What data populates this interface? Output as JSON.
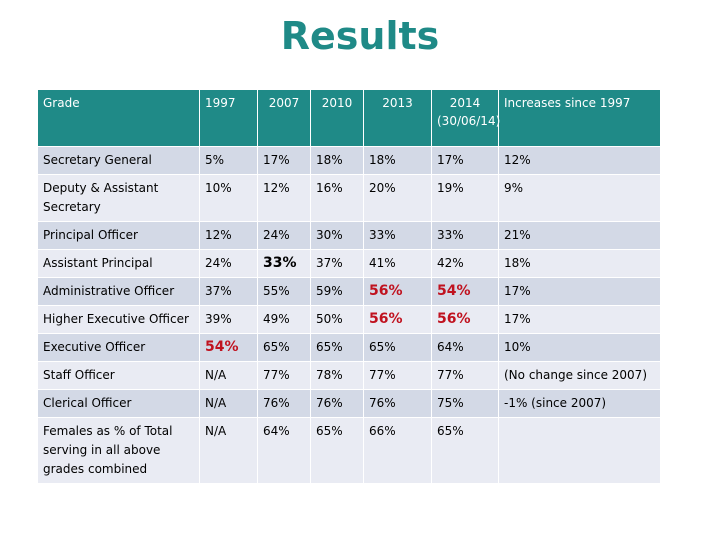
{
  "title": "Results",
  "table": {
    "headers": [
      "Grade",
      "1997",
      "2007",
      "2010",
      "2013",
      "2014 (30/06/14)",
      "Increases since 1997"
    ],
    "rows": [
      {
        "grade": "Secretary General",
        "v1997": "5%",
        "v2007": "17%",
        "v2010": "18%",
        "v2013": "18%",
        "v2014": "17%",
        "increase": "12%"
      },
      {
        "grade": "Deputy & Assistant Secretary",
        "v1997": "10%",
        "v2007": "12%",
        "v2010": "16%",
        "v2013": "20%",
        "v2014": "19%",
        "increase": "9%"
      },
      {
        "grade": "Principal Officer",
        "v1997": "12%",
        "v2007": "24%",
        "v2010": "30%",
        "v2013": "33%",
        "v2014": "33%",
        "increase": "21%"
      },
      {
        "grade": "Assistant Principal",
        "v1997": "24%",
        "v2007": "33%",
        "v2010": "37%",
        "v2013": "41%",
        "v2014": "42%",
        "increase": "18%"
      },
      {
        "grade": "Administrative Officer",
        "v1997": "37%",
        "v2007": "55%",
        "v2010": "59%",
        "v2013": "56%",
        "v2014": "54%",
        "increase": "17%"
      },
      {
        "grade": "Higher Executive Officer",
        "v1997": "39%",
        "v2007": "49%",
        "v2010": "50%",
        "v2013": "56%",
        "v2014": "56%",
        "increase": "17%"
      },
      {
        "grade": "Executive Officer",
        "v1997": "54%",
        "v2007": "65%",
        "v2010": "65%",
        "v2013": "65%",
        "v2014": "64%",
        "increase": "10%"
      },
      {
        "grade": "Staff Officer",
        "v1997": "N/A",
        "v2007": "77%",
        "v2010": "78%",
        "v2013": "77%",
        "v2014": "77%",
        "increase": "(No change since 2007)"
      },
      {
        "grade": "Clerical Officer",
        "v1997": "N/A",
        "v2007": "76%",
        "v2010": "76%",
        "v2013": "76%",
        "v2014": "75%",
        "increase": "-1% (since 2007)"
      },
      {
        "grade": "Females as % of Total serving in all above grades combined",
        "v1997": "N/A",
        "v2007": "64%",
        "v2010": "65%",
        "v2013": "66%",
        "v2014": "65%",
        "increase": ""
      }
    ]
  },
  "colors": {
    "header_bg": "#1f8a87",
    "title": "#1f8a87",
    "row_odd": "#d3d9e6",
    "row_even": "#e9ebf3",
    "highlight": "#c0121f"
  }
}
